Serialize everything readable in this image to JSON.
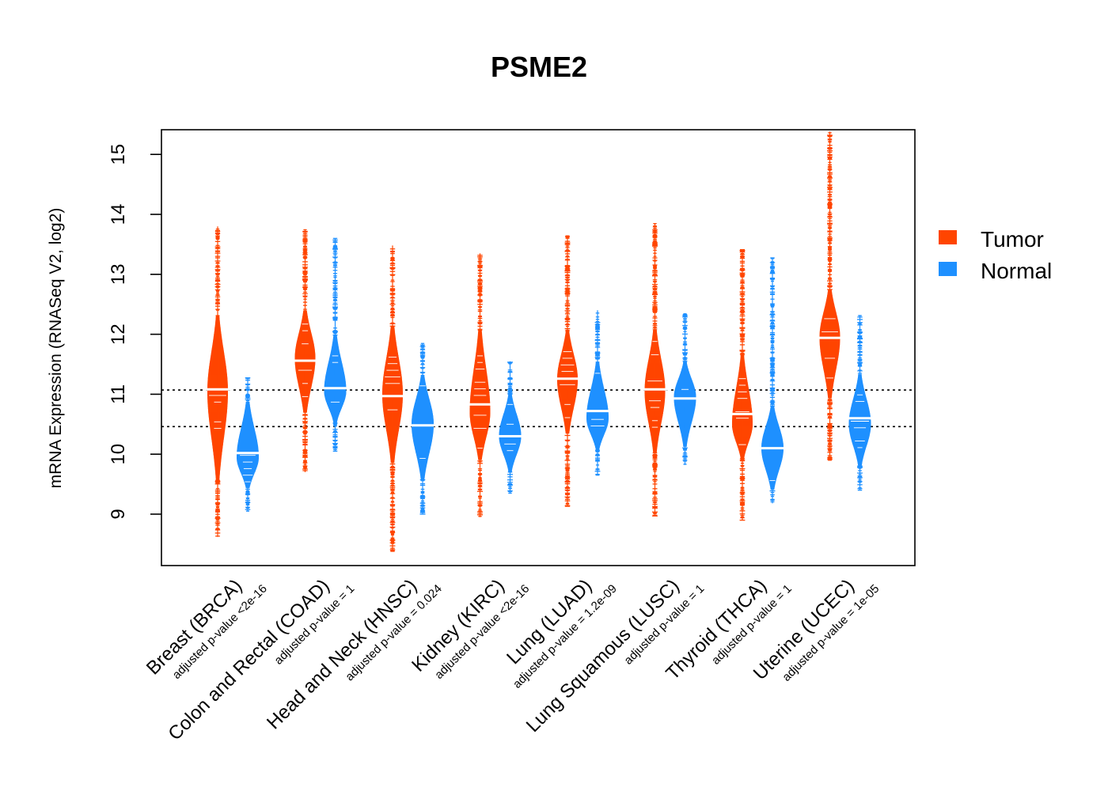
{
  "chart_data": {
    "type": "beeswarm",
    "title": "PSME2",
    "ylabel": "mRNA Expression (RNASeq V2, log2)",
    "xlabel": "",
    "ylim": [
      8.2,
      15.4
    ],
    "yticks": [
      9,
      10,
      11,
      12,
      13,
      14,
      15
    ],
    "reference_lines": [
      11.07,
      10.46
    ],
    "legend": {
      "position": "right",
      "entries": [
        {
          "name": "Tumor",
          "color": "#FF4500"
        },
        {
          "name": "Normal",
          "color": "#1E90FF"
        }
      ]
    },
    "groups": [
      {
        "category": "Breast (BRCA)",
        "pvalue": "adjusted p-value <2e-16",
        "tumor": {
          "min": 8.62,
          "q1": 10.4,
          "median": 11.08,
          "q3": 11.6,
          "max": 13.8,
          "mode": 11.05
        },
        "normal": {
          "min": 9.05,
          "q1": 9.75,
          "median": 10.02,
          "q3": 10.35,
          "max": 11.28,
          "mode": 9.95
        }
      },
      {
        "category": "Colon and Rectal (COAD)",
        "pvalue": "adjusted p-value = 1",
        "tumor": {
          "min": 9.7,
          "q1": 11.2,
          "median": 11.56,
          "q3": 11.95,
          "max": 13.75,
          "mode": 11.6
        },
        "normal": {
          "min": 10.05,
          "q1": 10.85,
          "median": 11.1,
          "q3": 11.45,
          "max": 13.6,
          "mode": 11.05
        }
      },
      {
        "category": "Head and Neck (HNSC)",
        "pvalue": "adjusted p-value = 0.024",
        "tumor": {
          "min": 8.38,
          "q1": 10.5,
          "median": 10.97,
          "q3": 11.5,
          "max": 13.48,
          "mode": 11.0
        },
        "normal": {
          "min": 9.0,
          "q1": 10.1,
          "median": 10.48,
          "q3": 10.85,
          "max": 11.85,
          "mode": 10.5
        }
      },
      {
        "category": "Kidney (KIRC)",
        "pvalue": "adjusted p-value <2e-16",
        "tumor": {
          "min": 8.95,
          "q1": 10.35,
          "median": 10.83,
          "q3": 11.3,
          "max": 13.35,
          "mode": 10.7
        },
        "normal": {
          "min": 9.35,
          "q1": 10.05,
          "median": 10.3,
          "q3": 10.6,
          "max": 11.55,
          "mode": 10.3
        }
      },
      {
        "category": "Lung (LUAD)",
        "pvalue": "adjusted p-value = 1.2e-09",
        "tumor": {
          "min": 9.13,
          "q1": 10.85,
          "median": 11.26,
          "q3": 11.6,
          "max": 13.65,
          "mode": 11.25
        },
        "normal": {
          "min": 9.65,
          "q1": 10.45,
          "median": 10.72,
          "q3": 11.0,
          "max": 12.4,
          "mode": 10.6
        }
      },
      {
        "category": "Lung Squamous (LUSC)",
        "pvalue": "adjusted p-value = 1",
        "tumor": {
          "min": 8.97,
          "q1": 10.6,
          "median": 11.08,
          "q3": 11.5,
          "max": 13.85,
          "mode": 11.05
        },
        "normal": {
          "min": 9.82,
          "q1": 10.6,
          "median": 10.93,
          "q3": 11.2,
          "max": 12.35,
          "mode": 10.95
        }
      },
      {
        "category": "Thyroid (THCA)",
        "pvalue": "adjusted p-value = 1",
        "tumor": {
          "min": 8.9,
          "q1": 10.25,
          "median": 10.67,
          "q3": 11.0,
          "max": 13.42,
          "mode": 10.5
        },
        "normal": {
          "min": 9.18,
          "q1": 9.8,
          "median": 10.1,
          "q3": 10.4,
          "max": 13.28,
          "mode": 10.1
        }
      },
      {
        "category": "Uterine (UCEC)",
        "pvalue": "adjusted p-value = 1e-05",
        "tumor": {
          "min": 9.9,
          "q1": 11.5,
          "median": 11.94,
          "q3": 12.3,
          "max": 15.38,
          "mode": 11.95
        },
        "normal": {
          "min": 9.4,
          "q1": 10.2,
          "median": 10.6,
          "q3": 10.85,
          "max": 12.32,
          "mode": 10.5
        }
      }
    ]
  }
}
